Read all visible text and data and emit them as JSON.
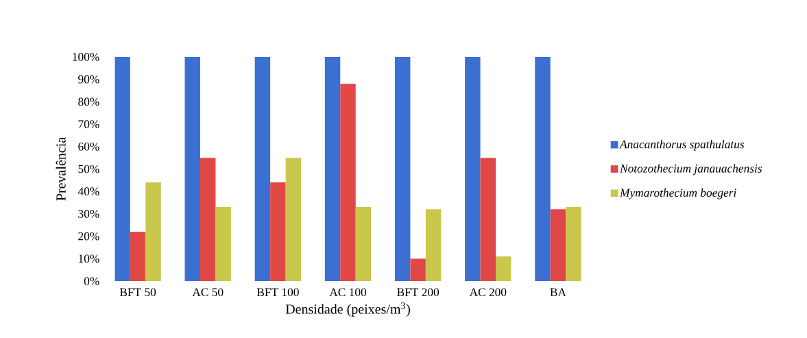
{
  "chart_data": {
    "type": "bar",
    "xlabel": "Densidade (peixes/m$^{3}$)",
    "ylabel": "Prevalência",
    "categories": [
      "BFT 50",
      "AC 50",
      "BFT 100",
      "AC 100",
      "BFT 200",
      "AC 200",
      "BA"
    ],
    "series": [
      {
        "name": "*Anacanthorus spathulatus*",
        "color": "#3b6fd2",
        "values": [
          100,
          100,
          100,
          100,
          100,
          100,
          100
        ]
      },
      {
        "name": "*Notozothecium janauachensis*",
        "color": "#e04848",
        "values": [
          22,
          55,
          44,
          88,
          10,
          55,
          32
        ]
      },
      {
        "name": "*Mymarothecium boegeri*",
        "color": "#c9c84c",
        "values": [
          44,
          33,
          55,
          33,
          32,
          11,
          33
        ]
      }
    ],
    "ylim": [
      0,
      100
    ],
    "yticks": [
      {
        "value": 0,
        "label": "0%"
      },
      {
        "value": 10,
        "label": "10%"
      },
      {
        "value": 20,
        "label": "20%"
      },
      {
        "value": 30,
        "label": "30%"
      },
      {
        "value": 40,
        "label": "40%"
      },
      {
        "value": 50,
        "label": "50%"
      },
      {
        "value": 60,
        "label": "60%"
      },
      {
        "value": 70,
        "label": "70%"
      },
      {
        "value": 80,
        "label": "80%"
      },
      {
        "value": 90,
        "label": "90%"
      },
      {
        "value": 100,
        "label": "100%"
      }
    ],
    "legend": "right"
  }
}
